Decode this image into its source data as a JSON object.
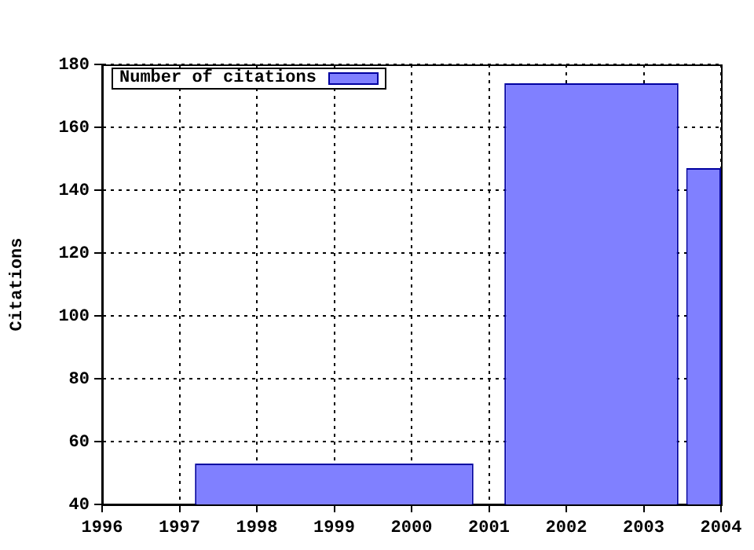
{
  "chart_data": {
    "type": "histogram",
    "ylabel": "Citations",
    "bins": [
      1997.2,
      2000.8,
      2001.2,
      2003.45,
      2003.55,
      2004
    ],
    "series": [
      {
        "name": "Number of citations",
        "color": "#8080ff",
        "values": [
          53,
          null,
          174,
          null,
          147
        ]
      }
    ],
    "xlim": [
      1996,
      2004
    ],
    "xticks": [
      1996,
      1997,
      1998,
      1999,
      2000,
      2001,
      2002,
      2003,
      2004
    ],
    "ylim": [
      40,
      180
    ],
    "yticks": [
      40,
      60,
      80,
      100,
      120,
      140,
      160,
      180
    ],
    "grid": true,
    "legend": "top left"
  }
}
